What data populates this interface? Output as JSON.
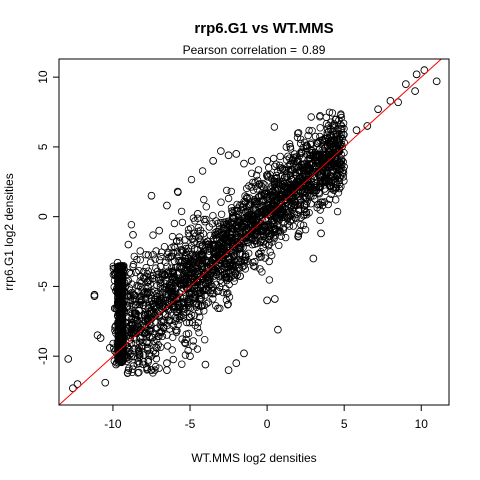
{
  "chart_data": {
    "type": "scatter",
    "title": "rrp6.G1 vs WT.MMS",
    "subtitle_label": "Pearson correlation =",
    "pearson_correlation": "0.89",
    "xlabel": "WT.MMS log2 densities",
    "ylabel": "rrp6.G1 log2 densities",
    "xlim": [
      -13.5,
      11.8
    ],
    "ylim": [
      -13.5,
      11.3
    ],
    "xticks": [
      -10,
      -5,
      0,
      5,
      10
    ],
    "xtick_labels": [
      "-10",
      "-5",
      "0",
      "5",
      "10"
    ],
    "yticks": [
      -10,
      -5,
      0,
      5,
      10
    ],
    "ytick_labels": [
      "-10",
      "-5",
      "0",
      "5",
      "10"
    ],
    "point_color": "#000000",
    "line_color": "#ff0000",
    "reference_line": {
      "intercept": 0,
      "slope": 1
    },
    "grid": false,
    "legend": "none",
    "series": [
      {
        "points": [
          [
            -12.9,
            -10.2
          ],
          [
            -12.6,
            -12.3
          ],
          [
            -12.3,
            -12.0
          ],
          [
            -11.2,
            -5.6
          ],
          [
            -11.2,
            -5.7
          ],
          [
            -11.0,
            -8.5
          ],
          [
            -10.8,
            -8.7
          ],
          [
            -10.5,
            -11.9
          ],
          [
            -10.2,
            -9.4
          ],
          [
            -9.7,
            -3.3
          ],
          [
            -9.7,
            -4.2
          ],
          [
            -9.6,
            -6.0
          ],
          [
            -9.6,
            -7.7
          ],
          [
            -9.5,
            -8.9
          ],
          [
            -9.8,
            -10.6
          ],
          [
            -9.0,
            -2.0
          ],
          [
            -8.7,
            -1.3
          ],
          [
            -8.5,
            -4.0
          ],
          [
            -8.0,
            -5.5
          ],
          [
            -7.8,
            -10.8
          ],
          [
            -7.5,
            -11.0
          ],
          [
            -7.0,
            -1.0
          ],
          [
            -7.5,
            1.5
          ],
          [
            -6.5,
            0.8
          ],
          [
            -6.5,
            -11.0
          ],
          [
            -6.0,
            -3.2
          ],
          [
            -6.5,
            -10.5
          ],
          [
            -5.8,
            1.8
          ],
          [
            -5.0,
            -10.0
          ],
          [
            -4.5,
            0.2
          ],
          [
            -4.0,
            -10.6
          ],
          [
            -3.5,
            4.0
          ],
          [
            -3.0,
            4.7
          ],
          [
            -2.5,
            4.4
          ],
          [
            -2.0,
            4.5
          ],
          [
            -1.5,
            3.8
          ],
          [
            -1.0,
            4.0
          ],
          [
            0.0,
            -6.0
          ],
          [
            0.5,
            -5.9
          ],
          [
            0.7,
            -8.1
          ],
          [
            -2.0,
            -10.5
          ],
          [
            -1.5,
            -9.8
          ],
          [
            -2.5,
            -11.0
          ],
          [
            -1.5,
            -3.5
          ],
          [
            0.0,
            4.0
          ],
          [
            0.5,
            3.6
          ],
          [
            1.5,
            5.0
          ],
          [
            2.0,
            2.5
          ],
          [
            3.0,
            -3.0
          ],
          [
            3.5,
            -1.2
          ],
          [
            4.2,
            2.0
          ],
          [
            5.0,
            5.3
          ],
          [
            5.8,
            6.2
          ],
          [
            6.5,
            6.5
          ],
          [
            7.2,
            7.7
          ],
          [
            8.0,
            8.3
          ],
          [
            8.5,
            8.2
          ],
          [
            9.0,
            9.5
          ],
          [
            9.6,
            9.0
          ],
          [
            9.7,
            10.2
          ],
          [
            10.2,
            10.5
          ],
          [
            11.0,
            9.7
          ]
        ]
      }
    ]
  }
}
